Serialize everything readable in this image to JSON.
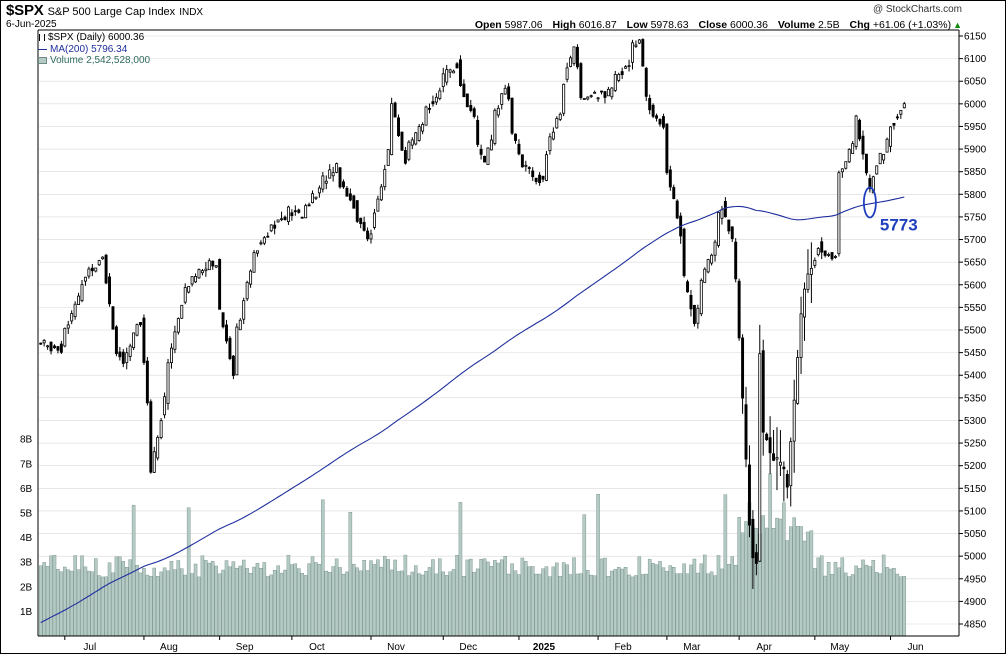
{
  "header": {
    "symbol": "$SPX",
    "name": "S&P 500 Large Cap Index",
    "exchange": "INDX",
    "date": "6-Jun-2025",
    "credit": "@ StockCharts.com",
    "open_label": "Open",
    "open": "5987.06",
    "high_label": "High",
    "high": "6016.87",
    "low_label": "Low",
    "low": "5978.63",
    "close_label": "Close",
    "close": "6000.36",
    "volume_label": "Volume",
    "volume": "2.5B",
    "chg_label": "Chg",
    "chg": "+61.06 (+1.03%)",
    "arrow": "▲"
  },
  "legend": {
    "price": "$SPX (Daily) 6000.36",
    "ma": "MA(200) 5796.34",
    "volume": "Volume 2,542,528,000"
  },
  "colors": {
    "candle": "#000000",
    "ma": "#1f2f9e",
    "volume_fill": "#b5cac4",
    "volume_stroke": "#6f8a84",
    "grid": "#d8d8d8",
    "callout": "#1f3fbf"
  },
  "annotation": {
    "label": "5773",
    "value": 5773
  },
  "chart_data": {
    "type": "candlestick",
    "title": "$SPX S&P 500 Large Cap Index INDX",
    "price_axis": {
      "side": "right",
      "ticks": [
        4850,
        4900,
        4950,
        5000,
        5050,
        5100,
        5150,
        5200,
        5250,
        5300,
        5350,
        5400,
        5450,
        5500,
        5550,
        5600,
        5650,
        5700,
        5750,
        5800,
        5850,
        5900,
        5950,
        6000,
        6050,
        6100,
        6150
      ],
      "range": [
        4830,
        6160
      ]
    },
    "volume_axis": {
      "side": "left",
      "ticks": [
        "1B",
        "2B",
        "3B",
        "4B",
        "5B",
        "6B",
        "7B",
        "8B"
      ],
      "tick_values": [
        1,
        2,
        3,
        4,
        5,
        6,
        7,
        8
      ],
      "unit": "B"
    },
    "x_axis": {
      "labels": [
        "Jul",
        "Aug",
        "Sep",
        "Oct",
        "Nov",
        "Dec",
        "2025",
        "Feb",
        "Mar",
        "Apr",
        "May",
        "Jun"
      ],
      "bold": [
        "2025"
      ]
    },
    "grid": "horizontal, price ticks",
    "series": [
      {
        "name": "$SPX (Daily)",
        "last": 6000.36
      },
      {
        "name": "MA(200)",
        "last": 5796.34
      },
      {
        "name": "Volume",
        "last": 2542528000
      }
    ],
    "anchors": [
      {
        "date": "2024-06-20",
        "close": 5470
      },
      {
        "date": "2024-06-28",
        "close": 5460
      },
      {
        "date": "2024-07-05",
        "close": 5567
      },
      {
        "date": "2024-07-10",
        "close": 5633
      },
      {
        "date": "2024-07-16",
        "close": 5667
      },
      {
        "date": "2024-07-19",
        "close": 5505
      },
      {
        "date": "2024-07-24",
        "close": 5427
      },
      {
        "date": "2024-07-31",
        "close": 5522
      },
      {
        "date": "2024-08-02",
        "close": 5346
      },
      {
        "date": "2024-08-05",
        "close": 5186
      },
      {
        "date": "2024-08-09",
        "close": 5344
      },
      {
        "date": "2024-08-16",
        "close": 5554
      },
      {
        "date": "2024-08-23",
        "close": 5634
      },
      {
        "date": "2024-08-30",
        "close": 5648
      },
      {
        "date": "2024-09-06",
        "close": 5408
      },
      {
        "date": "2024-09-13",
        "close": 5626
      },
      {
        "date": "2024-09-19",
        "close": 5713
      },
      {
        "date": "2024-09-30",
        "close": 5762
      },
      {
        "date": "2024-10-04",
        "close": 5751
      },
      {
        "date": "2024-10-18",
        "close": 5864
      },
      {
        "date": "2024-10-31",
        "close": 5705
      },
      {
        "date": "2024-11-05",
        "close": 5782
      },
      {
        "date": "2024-11-11",
        "close": 6001
      },
      {
        "date": "2024-11-15",
        "close": 5870
      },
      {
        "date": "2024-11-29",
        "close": 6032
      },
      {
        "date": "2024-12-06",
        "close": 6090
      },
      {
        "date": "2024-12-18",
        "close": 5872
      },
      {
        "date": "2024-12-26",
        "close": 6037
      },
      {
        "date": "2025-01-02",
        "close": 5869
      },
      {
        "date": "2025-01-10",
        "close": 5827
      },
      {
        "date": "2025-01-23",
        "close": 6119
      },
      {
        "date": "2025-01-27",
        "close": 6012
      },
      {
        "date": "2025-02-07",
        "close": 6026
      },
      {
        "date": "2025-02-19",
        "close": 6144
      },
      {
        "date": "2025-02-21",
        "close": 6013
      },
      {
        "date": "2025-02-28",
        "close": 5955
      },
      {
        "date": "2025-03-10",
        "close": 5614
      },
      {
        "date": "2025-03-13",
        "close": 5522
      },
      {
        "date": "2025-03-25",
        "close": 5776
      },
      {
        "date": "2025-03-31",
        "close": 5612
      },
      {
        "date": "2025-04-04",
        "close": 5074
      },
      {
        "date": "2025-04-08",
        "close": 4983
      },
      {
        "date": "2025-04-09",
        "close": 5457
      },
      {
        "date": "2025-04-10",
        "close": 5268
      },
      {
        "date": "2025-04-21",
        "close": 5158
      },
      {
        "date": "2025-04-25",
        "close": 5525
      },
      {
        "date": "2025-05-02",
        "close": 5687
      },
      {
        "date": "2025-05-09",
        "close": 5660
      },
      {
        "date": "2025-05-12",
        "close": 5844
      },
      {
        "date": "2025-05-19",
        "close": 5963
      },
      {
        "date": "2025-05-23",
        "close": 5803
      },
      {
        "date": "2025-05-30",
        "close": 5912
      },
      {
        "date": "2025-06-06",
        "close": 6000.36
      }
    ]
  }
}
